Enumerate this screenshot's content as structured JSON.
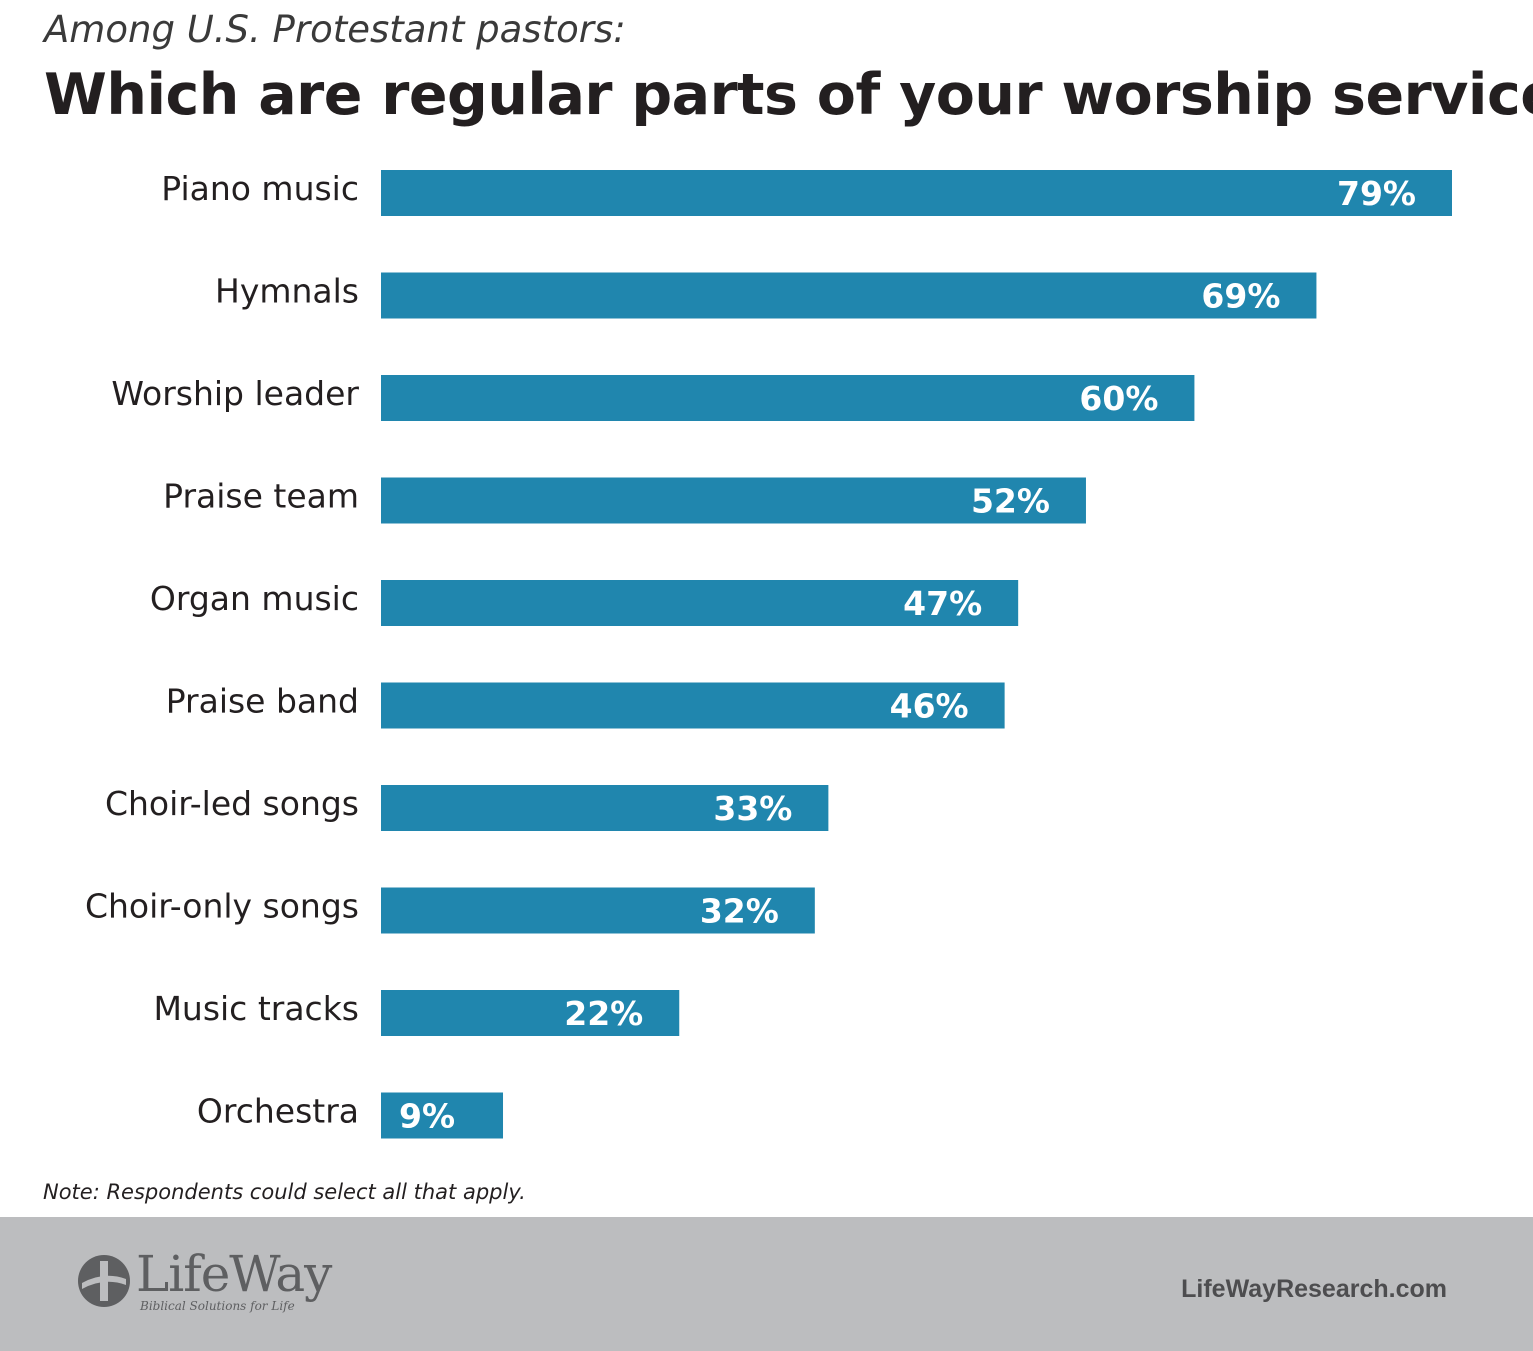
{
  "header": {
    "subtitle": "Among U.S. Protestant pastors:",
    "title": "Which are regular parts of your worship service?"
  },
  "chart_data": {
    "type": "bar",
    "orientation": "horizontal",
    "title": "Which are regular parts of your worship service?",
    "subtitle": "Among U.S. Protestant pastors:",
    "categories": [
      "Piano music",
      "Hymnals",
      "Worship leader",
      "Praise team",
      "Organ music",
      "Praise band",
      "Choir-led songs",
      "Choir-only songs",
      "Music tracks",
      "Orchestra"
    ],
    "values": [
      79,
      69,
      60,
      52,
      47,
      46,
      33,
      32,
      22,
      9
    ],
    "value_labels": [
      "79%",
      "69%",
      "60%",
      "52%",
      "47%",
      "46%",
      "33%",
      "32%",
      "22%",
      "9%"
    ],
    "unit": "%",
    "xlim": [
      0,
      79
    ],
    "grid": false,
    "legend": "none",
    "bar_color": "#2086ae"
  },
  "note": "Note: Respondents could select all that apply.",
  "footer": {
    "logo_text": "LifeWay",
    "logo_tagline": "Biblical Solutions for Life",
    "website": "LifeWayResearch.com",
    "background_color": "#bcbdbf"
  }
}
